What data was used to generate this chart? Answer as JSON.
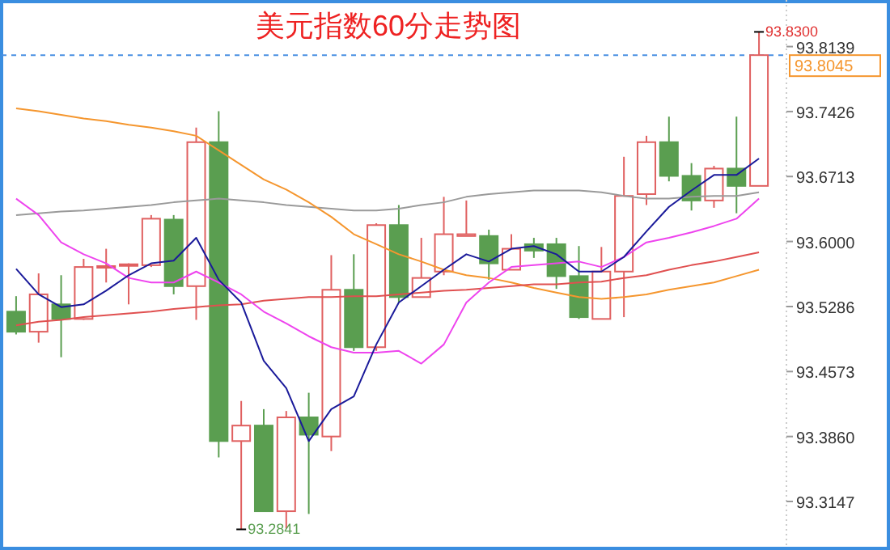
{
  "chart_data": {
    "type": "candlestick",
    "title": "美元指数60分走势图",
    "categories": [
      null,
      null,
      null,
      null,
      null,
      null,
      null,
      null,
      null,
      null,
      null,
      null,
      null,
      null,
      null,
      null,
      null,
      null,
      null,
      null,
      null,
      null,
      null,
      null,
      null,
      null,
      null,
      null,
      null,
      null,
      null,
      null,
      null,
      null
    ],
    "ohlc": [
      [
        93.523,
        93.54,
        93.498,
        93.501
      ],
      [
        93.501,
        93.565,
        93.489,
        93.542
      ],
      [
        93.531,
        93.563,
        93.473,
        93.515
      ],
      [
        93.515,
        93.581,
        93.514,
        93.572
      ],
      [
        93.572,
        93.592,
        93.555,
        93.573
      ],
      [
        93.574,
        93.576,
        93.531,
        93.575
      ],
      [
        93.574,
        93.629,
        93.572,
        93.625
      ],
      [
        93.624,
        93.629,
        93.542,
        93.551
      ],
      [
        93.551,
        93.725,
        93.514,
        93.709
      ],
      [
        93.709,
        93.743,
        93.363,
        93.381
      ],
      [
        93.381,
        93.425,
        93.2841,
        93.398
      ],
      [
        93.398,
        93.416,
        93.304,
        93.304
      ],
      [
        93.304,
        93.414,
        93.285,
        93.407
      ],
      [
        93.407,
        93.434,
        93.301,
        93.388
      ],
      [
        93.386,
        93.585,
        93.37,
        93.547
      ],
      [
        93.547,
        93.586,
        93.48,
        93.484
      ],
      [
        93.484,
        93.62,
        93.48,
        93.618
      ],
      [
        93.618,
        93.64,
        93.533,
        93.539
      ],
      [
        93.539,
        93.604,
        93.539,
        93.56
      ],
      [
        93.567,
        93.649,
        93.563,
        93.608
      ],
      [
        93.606,
        93.645,
        93.606,
        93.608
      ],
      [
        93.606,
        93.613,
        93.558,
        93.576
      ],
      [
        93.569,
        93.608,
        93.569,
        93.592
      ],
      [
        93.597,
        93.604,
        93.582,
        93.59
      ],
      [
        93.597,
        93.604,
        93.548,
        93.562
      ],
      [
        93.562,
        93.595,
        93.515,
        93.517
      ],
      [
        93.515,
        93.594,
        93.515,
        93.567
      ],
      [
        93.567,
        93.693,
        93.517,
        93.65
      ],
      [
        93.652,
        93.716,
        93.64,
        93.709
      ],
      [
        93.709,
        93.737,
        93.666,
        93.672
      ],
      [
        93.672,
        93.686,
        93.634,
        93.645
      ],
      [
        93.645,
        93.683,
        93.637,
        93.68
      ],
      [
        93.68,
        93.737,
        93.631,
        93.661
      ],
      [
        93.661,
        93.83,
        93.661,
        93.8045
      ]
    ],
    "colors": [
      "#5a9e50",
      "#e06060",
      "#5a9e50",
      "#e06060",
      "#e06060",
      "#e06060",
      "#e06060",
      "#5a9e50",
      "#e06060",
      "#5a9e50",
      "#e06060",
      "#5a9e50",
      "#e06060",
      "#5a9e50",
      "#e06060",
      "#5a9e50",
      "#e06060",
      "#5a9e50",
      "#e06060",
      "#e06060",
      "#e06060",
      "#5a9e50",
      "#e06060",
      "#5a9e50",
      "#5a9e50",
      "#5a9e50",
      "#e06060",
      "#e06060",
      "#e06060",
      "#5a9e50",
      "#5a9e50",
      "#e06060",
      "#5a9e50",
      "#e06060"
    ],
    "series": [
      {
        "type": "line",
        "color": "#9a9a9a",
        "values": [
          93.629,
          93.631,
          93.633,
          93.634,
          93.636,
          93.638,
          93.64,
          93.643,
          93.645,
          93.647,
          93.645,
          93.643,
          93.64,
          93.638,
          93.636,
          93.634,
          93.634,
          93.636,
          93.64,
          93.643,
          93.649,
          93.652,
          93.654,
          93.656,
          93.656,
          93.656,
          93.654,
          93.65,
          93.647,
          93.647,
          93.649,
          93.65,
          93.65,
          93.654
        ]
      },
      {
        "type": "line",
        "color": "#f5962e",
        "values": [
          93.746,
          93.743,
          93.739,
          93.735,
          93.732,
          93.728,
          93.725,
          93.721,
          93.716,
          93.7,
          93.684,
          93.668,
          93.657,
          93.643,
          93.627,
          93.608,
          93.597,
          93.586,
          93.578,
          93.569,
          93.563,
          93.56,
          93.555,
          93.549,
          93.544,
          93.539,
          93.537,
          93.539,
          93.542,
          93.547,
          93.551,
          93.555,
          93.562,
          93.569
        ]
      },
      {
        "type": "line",
        "color": "#e05050",
        "values": [
          93.508,
          93.512,
          93.514,
          93.517,
          93.519,
          93.521,
          93.523,
          93.526,
          93.528,
          93.53,
          93.531,
          93.535,
          93.537,
          93.539,
          93.539,
          93.54,
          93.54,
          93.542,
          93.544,
          93.546,
          93.547,
          93.549,
          93.551,
          93.553,
          93.553,
          93.555,
          93.556,
          93.56,
          93.563,
          93.569,
          93.574,
          93.578,
          93.583,
          93.588
        ]
      },
      {
        "type": "line",
        "color": "#ee44ee",
        "values": [
          93.647,
          93.629,
          93.599,
          93.586,
          93.576,
          93.56,
          93.555,
          93.555,
          93.567,
          93.555,
          93.542,
          93.523,
          93.51,
          93.496,
          93.484,
          93.478,
          93.478,
          93.48,
          93.466,
          93.487,
          93.533,
          93.555,
          93.572,
          93.574,
          93.576,
          93.578,
          93.572,
          93.583,
          93.599,
          93.604,
          93.61,
          93.617,
          93.625,
          93.647
        ]
      },
      {
        "type": "line",
        "color": "#1a1a9a",
        "values": [
          93.57,
          93.542,
          93.528,
          93.531,
          93.546,
          93.563,
          93.576,
          93.579,
          93.604,
          93.558,
          93.533,
          93.469,
          93.439,
          93.381,
          93.416,
          93.43,
          93.487,
          93.533,
          93.551,
          93.569,
          93.586,
          93.578,
          93.592,
          93.595,
          93.586,
          93.567,
          93.567,
          93.583,
          93.611,
          93.638,
          93.656,
          93.673,
          93.673,
          93.691
        ]
      }
    ],
    "ylim": [
      93.265,
      93.865
    ],
    "yticks": [
      93.8139,
      93.7426,
      93.6713,
      {
        "value": 93.6,
        "label": "93.6000"
      },
      93.5286,
      93.4573,
      {
        "value": 93.386,
        "label": "93.3860"
      },
      93.3147
    ],
    "ref_lines": [
      {
        "axis": "y",
        "value": 93.8045,
        "label": "93.8045",
        "color": "#4a90e2",
        "line_style": "dashed"
      }
    ],
    "annotations": [
      "93.8300",
      "93.2841"
    ]
  }
}
